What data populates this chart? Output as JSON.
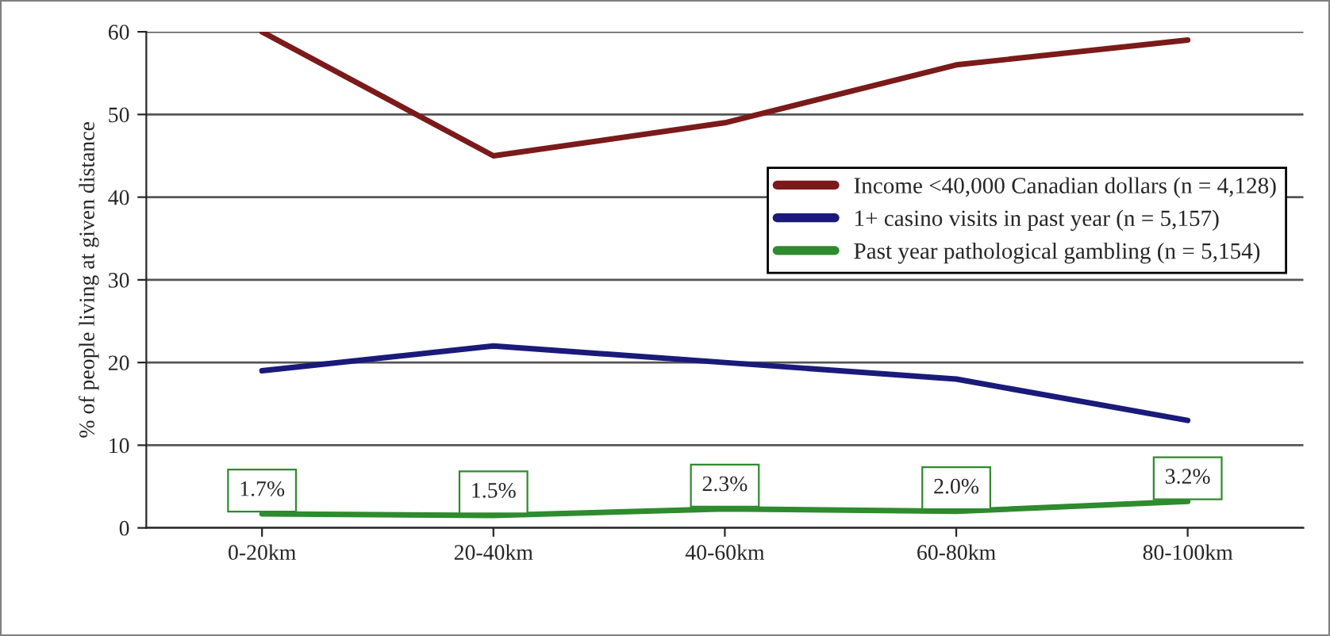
{
  "chart_data": {
    "type": "line",
    "ylabel": "% of people living at given distance",
    "categories": [
      "0-20km",
      "20-40km",
      "40-60km",
      "60-80km",
      "80-100km"
    ],
    "series": [
      {
        "name": "Income <40,000 Canadian dollars (n = 4,128)",
        "color": "#7b1a1a",
        "values": [
          60,
          45,
          49,
          56,
          59
        ]
      },
      {
        "name": "1+ casino visits in past year (n = 5,157)",
        "color": "#1a1a7a",
        "values": [
          19,
          22,
          20,
          18,
          13
        ]
      },
      {
        "name": "Past year pathological gambling (n = 5,154)",
        "color": "#2e8b2e",
        "values": [
          1.7,
          1.5,
          2.3,
          2.0,
          3.2
        ],
        "value_labels": [
          "1.7%",
          "1.5%",
          "2.3%",
          "2.0%",
          "3.2%"
        ]
      }
    ],
    "ylim": [
      0,
      60
    ],
    "yticks": [
      0,
      10,
      20,
      30,
      40,
      50,
      60
    ],
    "grid": "y",
    "legend": "right",
    "marker": "none",
    "line_style": "solid"
  }
}
